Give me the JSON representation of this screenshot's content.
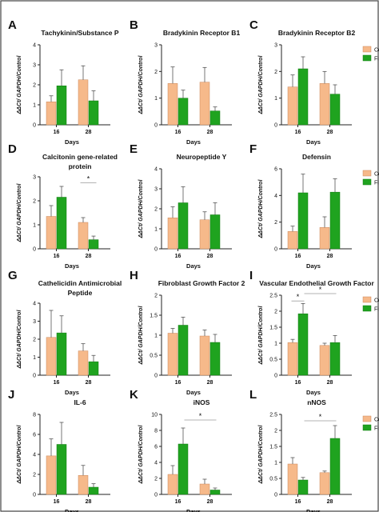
{
  "figure": {
    "border_color": "#444444"
  },
  "colors": {
    "control": "#F6B98A",
    "fish_skin": "#1FA31F",
    "axis": "#222222",
    "sig_line": "#9a9a9a"
  },
  "chart_data": [
    {
      "letter": "A",
      "type": "bar",
      "title": [
        "Tachykinin/Substance P"
      ],
      "xlabel": "Days",
      "ylabel": "ΔΔCt/ GAPDH/Control",
      "categories": [
        "16",
        "28"
      ],
      "ylim": [
        0,
        4
      ],
      "yticks": [
        0,
        1,
        2,
        3,
        4
      ],
      "series": [
        {
          "name": "Control",
          "values": [
            1.15,
            2.25
          ],
          "errors": [
            0.3,
            0.7
          ]
        },
        {
          "name": "Fish Skin",
          "values": [
            1.95,
            1.2
          ],
          "errors": [
            0.8,
            0.5
          ]
        }
      ],
      "legend": false,
      "significance": []
    },
    {
      "letter": "B",
      "type": "bar",
      "title": [
        "Bradykinin Receptor B1"
      ],
      "xlabel": "Days",
      "ylabel": "ΔΔCt/ GAPDH/Control",
      "categories": [
        "16",
        "28"
      ],
      "ylim": [
        0,
        3
      ],
      "yticks": [
        0,
        1,
        2,
        3
      ],
      "series": [
        {
          "name": "Control",
          "values": [
            1.55,
            1.6
          ],
          "errors": [
            0.62,
            0.55
          ]
        },
        {
          "name": "Fish Skin",
          "values": [
            1.0,
            0.52
          ],
          "errors": [
            0.3,
            0.15
          ]
        }
      ],
      "legend": false,
      "significance": []
    },
    {
      "letter": "C",
      "type": "bar",
      "title": [
        "Bradykinin Receptor B2"
      ],
      "xlabel": "Days",
      "ylabel": "ΔΔCt/ GAPDH/Control",
      "categories": [
        "16",
        "28"
      ],
      "ylim": [
        0,
        3
      ],
      "yticks": [
        0,
        1,
        2,
        3
      ],
      "series": [
        {
          "name": "Control",
          "values": [
            1.42,
            1.55
          ],
          "errors": [
            0.45,
            0.45
          ]
        },
        {
          "name": "Fish Skin",
          "values": [
            2.1,
            1.15
          ],
          "errors": [
            0.45,
            0.35
          ]
        }
      ],
      "legend": true,
      "significance": []
    },
    {
      "letter": "D",
      "type": "bar",
      "title": [
        "Calcitonin gene-related",
        "protein"
      ],
      "xlabel": "Days",
      "ylabel": "ΔΔCt/ GAPDH/Control",
      "categories": [
        "16",
        "28"
      ],
      "ylim": [
        0,
        3
      ],
      "yticks": [
        0,
        1,
        2,
        3
      ],
      "series": [
        {
          "name": "Control",
          "values": [
            1.35,
            1.1
          ],
          "errors": [
            0.45,
            0.2
          ]
        },
        {
          "name": "Fish Skin",
          "values": [
            2.15,
            0.38
          ],
          "errors": [
            0.45,
            0.15
          ]
        }
      ],
      "legend": false,
      "significance": [
        {
          "label": "*",
          "from": 0.75,
          "to": 1.25,
          "y": 2.75
        }
      ]
    },
    {
      "letter": "E",
      "type": "bar",
      "title": [
        "Neuropeptide Y"
      ],
      "xlabel": "Days",
      "ylabel": "ΔΔCt/ GAPDH/Control",
      "categories": [
        "16",
        "28"
      ],
      "ylim": [
        0,
        4
      ],
      "yticks": [
        0,
        1,
        2,
        3,
        4
      ],
      "series": [
        {
          "name": "Control",
          "values": [
            1.55,
            1.45
          ],
          "errors": [
            0.55,
            0.4
          ]
        },
        {
          "name": "Fish Skin",
          "values": [
            2.3,
            1.7
          ],
          "errors": [
            0.8,
            0.6
          ]
        }
      ],
      "legend": false,
      "significance": []
    },
    {
      "letter": "F",
      "type": "bar",
      "title": [
        "Defensin"
      ],
      "xlabel": "Days",
      "ylabel": "ΔΔCt/ GAPDH/Control",
      "categories": [
        "16",
        "28"
      ],
      "ylim": [
        0,
        6
      ],
      "yticks": [
        0,
        2,
        4,
        6
      ],
      "series": [
        {
          "name": "Control",
          "values": [
            1.3,
            1.6
          ],
          "errors": [
            0.4,
            0.8
          ]
        },
        {
          "name": "Fish Skin",
          "values": [
            4.2,
            4.25
          ],
          "errors": [
            1.4,
            1.0
          ]
        }
      ],
      "legend": true,
      "significance": []
    },
    {
      "letter": "G",
      "type": "bar",
      "title": [
        "Cathelicidin Antimicrobial",
        "Peptide"
      ],
      "xlabel": "Days",
      "ylabel": "ΔΔCt/ GAPDH/Control",
      "categories": [
        "16",
        "28"
      ],
      "ylim": [
        0,
        4
      ],
      "yticks": [
        0,
        1,
        2,
        3,
        4
      ],
      "series": [
        {
          "name": "Control",
          "values": [
            2.1,
            1.35
          ],
          "errors": [
            1.5,
            0.4
          ]
        },
        {
          "name": "Fish Skin",
          "values": [
            2.35,
            0.75
          ],
          "errors": [
            0.95,
            0.35
          ]
        }
      ],
      "legend": false,
      "significance": []
    },
    {
      "letter": "H",
      "type": "bar",
      "title": [
        "Fibroblast Growth Factor 2"
      ],
      "xlabel": "Days",
      "ylabel": "ΔΔCt/ GAPDH/Control",
      "categories": [
        "16",
        "28"
      ],
      "ylim": [
        0,
        2.0
      ],
      "yticks": [
        0,
        0.5,
        1.0,
        1.5,
        2.0
      ],
      "series": [
        {
          "name": "Control",
          "values": [
            1.05,
            0.98
          ],
          "errors": [
            0.12,
            0.15
          ]
        },
        {
          "name": "Fish Skin",
          "values": [
            1.25,
            0.82
          ],
          "errors": [
            0.2,
            0.2
          ]
        }
      ],
      "legend": false,
      "significance": []
    },
    {
      "letter": "I",
      "type": "bar",
      "title": [
        "Vascular Endothelial Growth Factor"
      ],
      "xlabel": "Days",
      "ylabel": "ΔΔCt/ GAPDH/Control",
      "categories": [
        "16",
        "28"
      ],
      "ylim": [
        0,
        2.5
      ],
      "yticks": [
        0,
        0.5,
        1.0,
        1.5,
        2.0,
        2.5
      ],
      "series": [
        {
          "name": "Control",
          "values": [
            1.02,
            0.93
          ],
          "errors": [
            0.1,
            0.07
          ]
        },
        {
          "name": "Fish Skin",
          "values": [
            1.92,
            1.02
          ],
          "errors": [
            0.32,
            0.22
          ]
        }
      ],
      "legend": true,
      "significance": [
        {
          "label": "*",
          "from": -0.2,
          "to": 0.2,
          "y": 2.32
        },
        {
          "label": "*",
          "from": 0.2,
          "to": 1.2,
          "y": 2.55
        }
      ]
    },
    {
      "letter": "J",
      "type": "bar",
      "title": [
        "IL-6"
      ],
      "xlabel": "Days",
      "ylabel": "ΔΔCt/ GAPDH/Control",
      "categories": [
        "16",
        "28"
      ],
      "ylim": [
        0,
        8
      ],
      "yticks": [
        0,
        2,
        4,
        6,
        8
      ],
      "series": [
        {
          "name": "Control",
          "values": [
            3.85,
            1.9
          ],
          "errors": [
            1.7,
            1.0
          ]
        },
        {
          "name": "Fish Skin",
          "values": [
            5.0,
            0.72
          ],
          "errors": [
            2.2,
            0.35
          ]
        }
      ],
      "legend": false,
      "significance": []
    },
    {
      "letter": "K",
      "type": "bar",
      "title": [
        "iNOS"
      ],
      "xlabel": "Days",
      "ylabel": "ΔΔCt/ GAPDH/Control",
      "categories": [
        "16",
        "28"
      ],
      "ylim": [
        0,
        10
      ],
      "yticks": [
        0,
        2,
        4,
        6,
        8,
        10
      ],
      "series": [
        {
          "name": "Control",
          "values": [
            2.5,
            1.3
          ],
          "errors": [
            1.1,
            0.6
          ]
        },
        {
          "name": "Fish Skin",
          "values": [
            6.3,
            0.55
          ],
          "errors": [
            2.0,
            0.25
          ]
        }
      ],
      "legend": false,
      "significance": [
        {
          "label": "*",
          "from": 0.2,
          "to": 1.2,
          "y": 9.3
        }
      ]
    },
    {
      "letter": "L",
      "type": "bar",
      "title": [
        "nNOS"
      ],
      "xlabel": "Days",
      "ylabel": "ΔΔCt/ GAPDH/Control",
      "categories": [
        "16",
        "28"
      ],
      "ylim": [
        0,
        2.5
      ],
      "yticks": [
        0,
        0.5,
        1.0,
        1.5,
        2.0,
        2.5
      ],
      "series": [
        {
          "name": "Control",
          "values": [
            0.95,
            0.68
          ],
          "errors": [
            0.2,
            0.05
          ]
        },
        {
          "name": "Fish Skin",
          "values": [
            0.45,
            1.75
          ],
          "errors": [
            0.08,
            0.4
          ]
        }
      ],
      "legend": true,
      "significance": [
        {
          "label": "*",
          "from": 0.2,
          "to": 1.2,
          "y": 2.3
        }
      ]
    }
  ]
}
